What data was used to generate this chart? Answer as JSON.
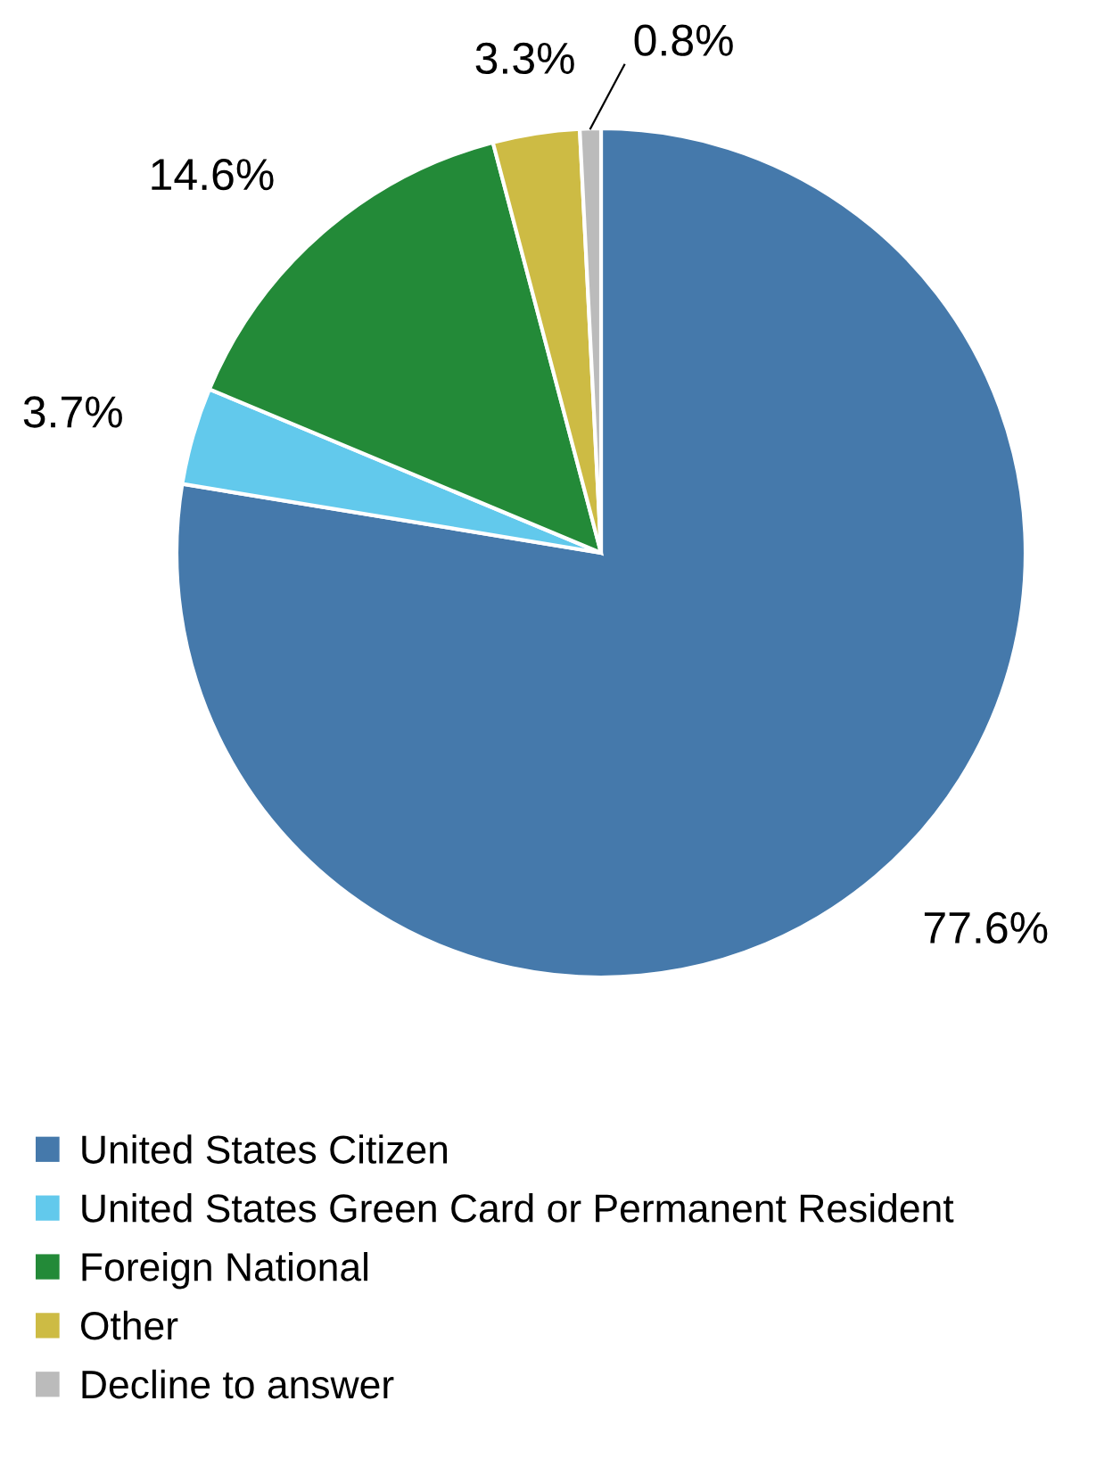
{
  "chart_data": {
    "type": "pie",
    "categories": [
      "United States Citizen",
      "United States Green Card or Permanent Resident",
      "Foreign National",
      "Other",
      "Decline to answer"
    ],
    "values": [
      77.6,
      3.7,
      14.6,
      3.3,
      0.8
    ],
    "colors": [
      "#4579ab",
      "#62c9ec",
      "#238a38",
      "#cdbb44",
      "#bbbbbb"
    ],
    "value_labels": [
      "77.6%",
      "3.7%",
      "14.6%",
      "3.3%",
      "0.8%"
    ],
    "legend": "bottom"
  }
}
